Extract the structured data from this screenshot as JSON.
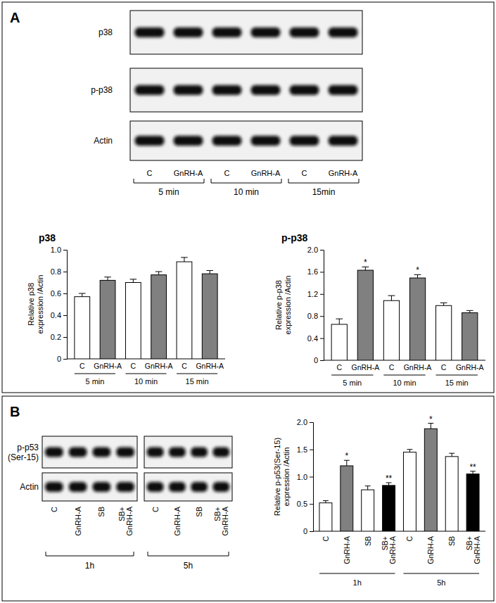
{
  "panels": [
    "A",
    "B"
  ],
  "blots": [
    {
      "rows": [
        "p38",
        "p-p38",
        "Actin"
      ],
      "lanes": [
        "C",
        "GnRH-A"
      ],
      "groups": [
        "5 min",
        "10 min",
        "15min"
      ]
    },
    {
      "rows": [
        "p-p53 (Ser-15)",
        "Actin"
      ],
      "lanes": [
        "C",
        "GnRH-A",
        "SB",
        "SB+ GnRH-A"
      ],
      "groups": [
        "1h",
        "5h"
      ]
    }
  ],
  "chart_data": [
    {
      "type": "bar",
      "title": "p38",
      "y_label": "Relative p38 expression /Actin",
      "categories": [
        "C",
        "GnRH-A",
        "C",
        "GnRH-A",
        "C",
        "GnRH-A"
      ],
      "groups": [
        "5 min",
        "10 min",
        "15 min"
      ],
      "values": [
        0.57,
        0.72,
        0.7,
        0.77,
        0.89,
        0.78
      ],
      "errors": [
        0.03,
        0.03,
        0.03,
        0.03,
        0.04,
        0.03
      ],
      "colors": [
        "#ffffff",
        "#808080",
        "#ffffff",
        "#808080",
        "#ffffff",
        "#808080"
      ],
      "ylim": [
        0,
        1
      ],
      "yticks": [
        0,
        0.2,
        0.4,
        0.6,
        0.8,
        {
          "value": 1,
          "label": "1.0"
        }
      ]
    },
    {
      "type": "bar",
      "title": "p-p38",
      "y_label": "Relative p-p38 expression /Actin",
      "categories": [
        "C",
        "GnRH-A",
        "C",
        "GnRH-A",
        "C",
        "GnRH-A"
      ],
      "groups": [
        "5 min",
        "10 min",
        "15 min"
      ],
      "values": [
        0.65,
        1.63,
        1.08,
        1.49,
        0.99,
        0.86
      ],
      "errors": [
        0.1,
        0.06,
        0.09,
        0.06,
        0.05,
        0.04
      ],
      "colors": [
        "#ffffff",
        "#808080",
        "#ffffff",
        "#808080",
        "#ffffff",
        "#808080"
      ],
      "significance": [
        null,
        "*",
        null,
        "*",
        null,
        null
      ],
      "ylim": [
        0,
        2
      ],
      "yticks": [
        0,
        0.4,
        0.8,
        1.2,
        1.6,
        {
          "value": 2,
          "label": "2.0"
        }
      ]
    },
    {
      "type": "bar",
      "y_label": "Relative p-p53(Ser-15) expression /Actin",
      "categories": [
        "C",
        "GnRH-A",
        "SB",
        "SB+ GnRH-A",
        "C",
        "GnRH-A",
        "SB",
        "SB+ GnRH-A"
      ],
      "groups": [
        "1h",
        "5h"
      ],
      "values": [
        0.52,
        1.2,
        0.76,
        0.84,
        1.45,
        1.88,
        1.37,
        1.05
      ],
      "errors": [
        0.04,
        0.1,
        0.07,
        0.05,
        0.05,
        0.1,
        0.06,
        0.05
      ],
      "colors": [
        "#ffffff",
        "#808080",
        "#ffffff",
        "#000000",
        "#ffffff",
        "#808080",
        "#ffffff",
        "#000000"
      ],
      "significance": [
        null,
        "*",
        null,
        "**",
        null,
        "*",
        null,
        "**"
      ],
      "ylim": [
        0,
        2
      ],
      "yticks": [
        0,
        0.5,
        {
          "value": 1,
          "label": "1.0"
        },
        1.5,
        {
          "value": 2,
          "label": "2.0"
        }
      ]
    }
  ]
}
